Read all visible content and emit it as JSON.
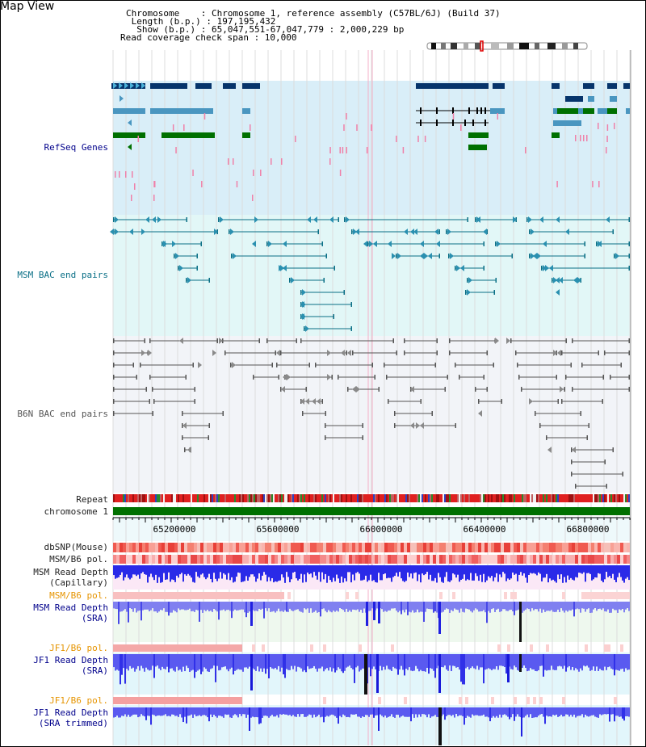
{
  "page": {
    "title": "Map View",
    "info_lines": [
      "Chromosome    : Chromosome 1, reference assembly (C57BL/6J) (Build 37)",
      " Length (b.p.) : 197,195,432",
      "  Show (b.p.) : 65,047,551-67,047,779 : 2,000,229 bp",
      "Read coverage check span : 10,000"
    ]
  },
  "tracks": {
    "refseq": {
      "label": "RefSeq Genes",
      "color": "#00008b"
    },
    "msm_bac": {
      "label": "MSM BAC end pairs",
      "color": "#0a6f86"
    },
    "b6n_bac": {
      "label": "B6N BAC end pairs",
      "color": "#555555"
    },
    "repeat": {
      "label": "Repeat"
    },
    "chromosome": {
      "label": "chromosome 1"
    },
    "dbsnp": {
      "label": "dbSNP(Mouse)"
    },
    "msm_b6_pol": {
      "label": "MSM/B6 pol."
    },
    "msm_depth_cap": {
      "label": "MSM Read Depth\n(Capillary)"
    },
    "msm_b6_pol2": {
      "label": "MSM/B6 pol.",
      "color": "#e69400"
    },
    "msm_depth_sra": {
      "label": "MSM Read Depth\n(SRA)",
      "color": "#00008b"
    },
    "jf1_b6_pol": {
      "label": "JF1/B6 pol.",
      "color": "#e69400"
    },
    "jf1_depth_sra": {
      "label": "JF1 Read Depth\n(SRA)",
      "color": "#00008b"
    },
    "jf1_b6_pol2": {
      "label": "JF1/B6 pol.",
      "color": "#e69400"
    },
    "jf1_depth_trim": {
      "label": "JF1 Read Depth\n(SRA trimmed)",
      "color": "#00008b"
    }
  },
  "axis": {
    "ticks": [
      "65200000",
      "65600000",
      "66000000",
      "66400000",
      "66800000"
    ]
  },
  "colors": {
    "refseq_bg": "#d9eef8",
    "bac_bg": "#e2f7f7",
    "b6n_bg": "#f2f4f8",
    "chrom_bar": "#007000",
    "gene_navy": "#06346b",
    "gene_teal": "#4a96c0",
    "gene_green": "#007000",
    "snp_red": "#e8453c",
    "depth_blue": "#2020f0",
    "depth_light": "#8080f0"
  }
}
